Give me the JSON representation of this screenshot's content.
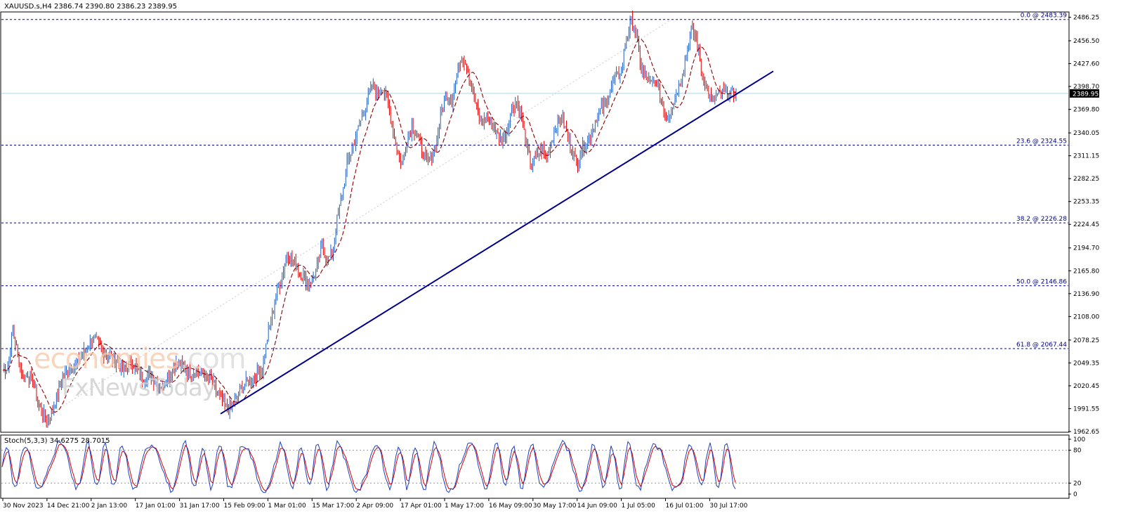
{
  "chart_data": [
    {
      "type": "line",
      "symbol": "XAUUSD.s,H4",
      "header": "XAUUSD.s,H4  2386.74 2390.80 2386.23 2389.95",
      "ohlc": {
        "open": 2386.74,
        "high": 2390.8,
        "low": 2386.23,
        "close": 2389.95
      },
      "current_price_label": "2389.95",
      "current_price": 2389.95,
      "ylim": [
        1962.65,
        2492
      ],
      "y_ticks": [
        "2486.25",
        "2456.50",
        "2427.60",
        "2398.70",
        "2369.80",
        "2340.05",
        "2311.15",
        "2282.25",
        "2253.35",
        "2224.45",
        "2194.70",
        "2165.80",
        "2136.90",
        "2108.00",
        "2078.25",
        "2049.35",
        "2020.45",
        "1991.55",
        "1962.65"
      ],
      "x_ticks": [
        "30 Nov 2023",
        "14 Dec 21:00",
        "2 Jan 13:00",
        "17 Jan 01:00",
        "31 Jan 17:00",
        "15 Feb 09:00",
        "1 Mar 01:00",
        "15 Mar 17:00",
        "2 Apr 09:00",
        "17 Apr 01:00",
        "1 May 17:00",
        "16 May 09:00",
        "30 May 17:00",
        "14 Jun 09:00",
        "1 Jul 05:00",
        "16 Jul 01:00",
        "30 Jul 17:00"
      ],
      "fib_levels": [
        {
          "label": "0.0 @ 2483.39",
          "value": 2483.39
        },
        {
          "label": "23.6 @ 2324.55",
          "value": 2324.55
        },
        {
          "label": "38.2 @ 2226.28",
          "value": 2226.28
        },
        {
          "label": "50.0 @ 2146.86",
          "value": 2146.86
        },
        {
          "label": "61.8 @ 2067.44",
          "value": 2067.44
        }
      ],
      "trendline": {
        "from": {
          "x": "15 Feb 09:00",
          "y": 1985
        },
        "to": {
          "x": "7 Aug",
          "y": 2418
        }
      },
      "price_path": {
        "x_index": [
          0,
          1,
          2,
          3,
          4,
          5,
          6,
          7,
          8,
          9,
          10,
          11,
          12,
          13,
          14,
          15,
          16,
          17,
          18,
          19,
          20,
          21,
          22,
          23,
          24,
          25,
          26,
          27,
          28,
          29,
          30,
          31,
          32,
          33,
          34,
          35,
          36,
          37,
          38,
          39,
          40,
          41,
          42,
          43,
          44,
          45,
          46,
          47,
          48,
          49,
          50,
          51,
          52,
          53,
          54,
          55,
          56,
          57,
          58,
          59,
          60,
          61,
          62,
          63,
          64,
          65,
          66,
          67,
          68,
          69,
          70,
          71,
          72,
          73,
          74,
          75,
          76,
          77,
          78,
          79,
          80,
          81,
          82,
          83,
          84,
          85,
          86,
          87,
          88,
          89,
          90,
          91,
          92,
          93,
          94,
          95,
          96,
          97,
          98,
          99,
          100,
          101,
          102,
          103,
          104,
          105,
          106,
          107,
          108,
          109,
          110,
          111,
          112,
          113,
          114,
          115,
          116,
          117,
          118,
          119,
          120,
          121,
          122,
          123,
          124,
          125,
          126,
          127,
          128,
          129,
          130,
          131,
          132,
          133,
          134,
          135,
          136,
          137,
          138,
          139,
          140,
          141,
          142,
          143,
          144,
          145,
          146,
          147
        ],
        "close": [
          2040,
          2045,
          2090,
          2060,
          2030,
          2035,
          2025,
          2000,
          1985,
          1978,
          1990,
          2010,
          2030,
          2040,
          2045,
          2048,
          2060,
          2070,
          2080,
          2075,
          2065,
          2060,
          2055,
          2050,
          2040,
          2045,
          2050,
          2040,
          2030,
          2035,
          2030,
          2025,
          2020,
          2030,
          2040,
          2050,
          2045,
          2040,
          2035,
          2040,
          2035,
          2030,
          2025,
          2010,
          2000,
          1990,
          1995,
          2005,
          2020,
          2025,
          2030,
          2035,
          2040,
          2080,
          2110,
          2140,
          2160,
          2185,
          2180,
          2170,
          2160,
          2150,
          2155,
          2170,
          2200,
          2180,
          2185,
          2230,
          2260,
          2300,
          2320,
          2340,
          2360,
          2380,
          2400,
          2390,
          2400,
          2380,
          2350,
          2320,
          2300,
          2330,
          2350,
          2340,
          2320,
          2300,
          2310,
          2330,
          2370,
          2390,
          2380,
          2410,
          2440,
          2425,
          2400,
          2370,
          2350,
          2360,
          2350,
          2340,
          2330,
          2340,
          2370,
          2380,
          2360,
          2320,
          2300,
          2310,
          2320,
          2310,
          2330,
          2350,
          2360,
          2340,
          2320,
          2300,
          2320,
          2330,
          2340,
          2360,
          2370,
          2380,
          2400,
          2410,
          2420,
          2460,
          2480,
          2465,
          2420,
          2410,
          2400,
          2405,
          2380,
          2360,
          2370,
          2390,
          2410,
          2440,
          2470,
          2460,
          2420,
          2400,
          2380,
          2385,
          2390,
          2392,
          2389.95,
          2389.95
        ]
      },
      "moving_average": {
        "style": "dashed",
        "color": "#8b0000"
      }
    },
    {
      "type": "line",
      "title": "Stoch(5,3,3) 34.6275 28.7015",
      "main": 34.6275,
      "signal": 28.7015,
      "ylim": [
        0,
        100
      ],
      "y_ticks": [
        "100",
        "80",
        "20",
        "0"
      ],
      "levels": [
        80,
        20
      ],
      "colors": {
        "main": "#1f3fbf",
        "signal": "#d40000"
      }
    }
  ],
  "colors": {
    "up_candle": "#1f5fbf",
    "down_candle": "#dd0000",
    "trendline": "#00008b",
    "fib": "#00008b",
    "price_line": "#add8e6",
    "grid_axis": "#000000"
  },
  "watermark": {
    "line1_prefix": "economies",
    "line1_suffix": ".com",
    "line2": "FxNewsToday"
  }
}
